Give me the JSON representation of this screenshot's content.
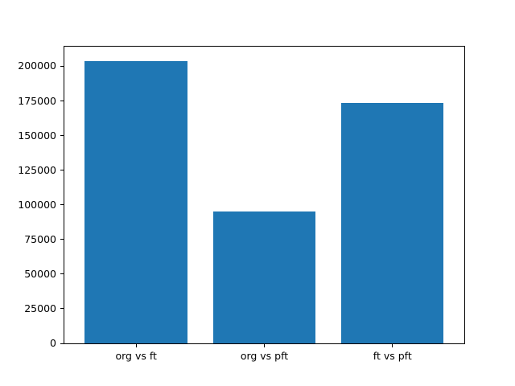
{
  "figure": {
    "background": "#ffffff"
  },
  "chart_data": {
    "type": "bar",
    "title": "",
    "xlabel": "",
    "ylabel": "",
    "categories": [
      "org vs ft",
      "org vs pft",
      "ft vs pft"
    ],
    "values": [
      204000,
      95000,
      173500
    ],
    "yticks": [
      0,
      25000,
      50000,
      75000,
      100000,
      125000,
      150000,
      175000,
      200000
    ],
    "ylim": [
      0,
      214200
    ],
    "xlim": [
      -0.56,
      2.56
    ],
    "bar_width": 0.8,
    "bar_color": "#1f77b4",
    "axis_color": "#000000",
    "tick_label_color": "#000000",
    "background_color": "#ffffff",
    "grid": false,
    "legend": false
  }
}
